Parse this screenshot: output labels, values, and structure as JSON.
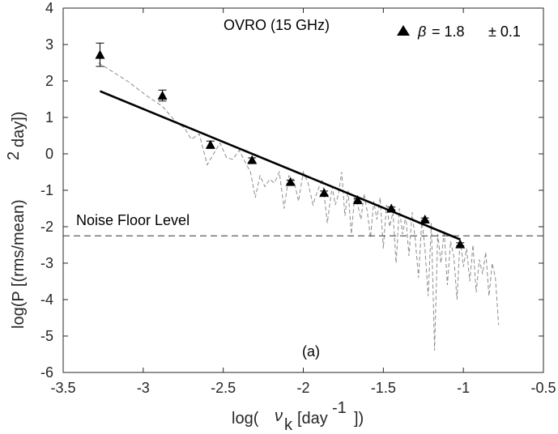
{
  "chart_data": {
    "type": "scatter",
    "title": "OVRO (15 GHz)",
    "panel_label": "(a)",
    "xlabel_main": "log(",
    "xlabel_nu": "ν",
    "xlabel_sub": "k",
    "xlabel_rest": "[day",
    "xlabel_sup": "-1",
    "xlabel_end": "])",
    "ylabel_main": "log(P [(rms/mean)",
    "ylabel_sup": "2",
    "ylabel_end": "day])",
    "xlim": [
      -3.5,
      -0.5
    ],
    "ylim": [
      -6,
      4
    ],
    "xticks": [
      -3.5,
      -3,
      -2.5,
      -2,
      -1.5,
      -1,
      -0.5
    ],
    "xtick_labels": [
      "-3.5",
      "-3",
      "-2.5",
      "-2",
      "-1.5",
      "-1",
      "-0.5"
    ],
    "yticks": [
      -6,
      -5,
      -4,
      -3,
      -2,
      -1,
      0,
      1,
      2,
      3,
      4
    ],
    "ytick_labels": [
      "-6",
      "-5",
      "-4",
      "-3",
      "-2",
      "-1",
      "0",
      "1",
      "2",
      "3",
      "4"
    ],
    "legend": {
      "placement": "top-right",
      "beta_symbol": "β",
      "value_text": "= 1.8",
      "error_text": "± 0.1"
    },
    "noise_floor": {
      "label": "Noise Floor Level",
      "y": -2.25
    },
    "binned_points": {
      "x": [
        -3.27,
        -2.88,
        -2.58,
        -2.32,
        -2.08,
        -1.87,
        -1.66,
        -1.45,
        -1.24,
        -1.02
      ],
      "y": [
        2.72,
        1.6,
        0.25,
        -0.17,
        -0.77,
        -1.07,
        -1.27,
        -1.5,
        -1.8,
        -2.48
      ],
      "err": [
        0.32,
        0.15,
        0.1,
        0.06,
        0.05,
        0.05,
        0.04,
        0.04,
        0.04,
        0.04
      ]
    },
    "fit_line": {
      "x": [
        -3.27,
        -1.02
      ],
      "y": [
        1.72,
        -2.35
      ]
    },
    "periodogram": {
      "x": [
        -3.28,
        -3.1,
        -2.98,
        -2.88,
        -2.8,
        -2.74,
        -2.7,
        -2.65,
        -2.6,
        -2.56,
        -2.52,
        -2.48,
        -2.44,
        -2.4,
        -2.36,
        -2.33,
        -2.3,
        -2.27,
        -2.24,
        -2.21,
        -2.18,
        -2.15,
        -2.12,
        -2.09,
        -2.06,
        -2.03,
        -2.0,
        -1.97,
        -1.94,
        -1.91,
        -1.88,
        -1.85,
        -1.82,
        -1.8,
        -1.78,
        -1.76,
        -1.74,
        -1.72,
        -1.7,
        -1.68,
        -1.66,
        -1.64,
        -1.62,
        -1.6,
        -1.58,
        -1.56,
        -1.54,
        -1.52,
        -1.5,
        -1.48,
        -1.46,
        -1.44,
        -1.42,
        -1.4,
        -1.38,
        -1.36,
        -1.34,
        -1.32,
        -1.3,
        -1.28,
        -1.26,
        -1.24,
        -1.22,
        -1.2,
        -1.18,
        -1.16,
        -1.14,
        -1.12,
        -1.1,
        -1.08,
        -1.06,
        -1.04,
        -1.02,
        -1.0,
        -0.98,
        -0.96,
        -0.94,
        -0.92,
        -0.9,
        -0.88,
        -0.86,
        -0.84,
        -0.82,
        -0.8,
        -0.78
      ],
      "y": [
        2.5,
        2.0,
        1.6,
        1.3,
        0.9,
        0.7,
        0.4,
        0.55,
        -0.3,
        0.0,
        0.3,
        -0.1,
        -0.15,
        0.1,
        -0.25,
        -0.5,
        -1.2,
        -0.6,
        -0.9,
        -0.7,
        -0.8,
        -0.5,
        -1.5,
        -0.6,
        -0.7,
        -1.3,
        -0.5,
        -0.8,
        -1.4,
        -1.0,
        -0.7,
        -1.9,
        -0.9,
        -1.4,
        -1.1,
        -0.5,
        -1.7,
        -1.0,
        -2.2,
        -1.2,
        -1.4,
        -1.8,
        -1.1,
        -1.6,
        -2.3,
        -1.3,
        -1.8,
        -1.2,
        -2.6,
        -1.4,
        -2.0,
        -1.6,
        -3.0,
        -1.5,
        -2.2,
        -1.7,
        -2.8,
        -1.6,
        -2.4,
        -3.4,
        -1.8,
        -2.6,
        -3.9,
        -1.9,
        -5.4,
        -2.2,
        -3.0,
        -2.1,
        -3.6,
        -2.4,
        -2.8,
        -4.0,
        -2.3,
        -3.1,
        -2.6,
        -3.5,
        -2.5,
        -3.8,
        -2.9,
        -3.3,
        -2.7,
        -3.9,
        -3.0,
        -3.4,
        -4.7
      ]
    }
  }
}
